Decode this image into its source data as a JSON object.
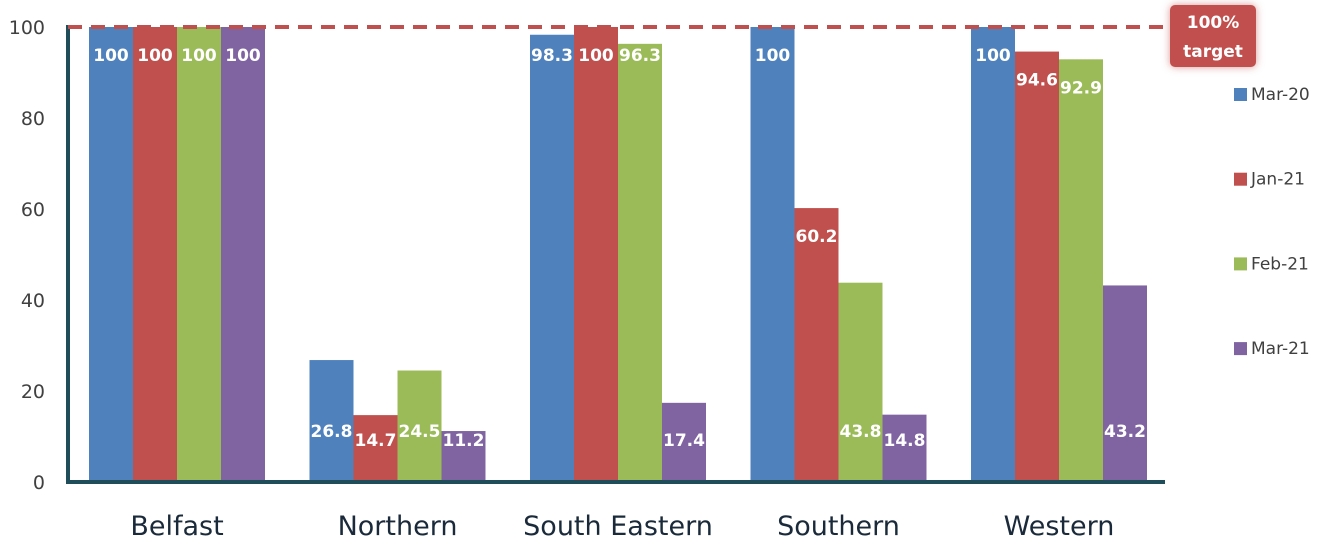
{
  "chart_data": {
    "type": "bar",
    "categories": [
      "Belfast",
      "Northern",
      "South Eastern",
      "Southern",
      "Western"
    ],
    "series": [
      {
        "name": "Mar-20",
        "color": "#4f81bd",
        "values": [
          100,
          26.8,
          98.3,
          100,
          100
        ]
      },
      {
        "name": "Jan-21",
        "color": "#c0504d",
        "values": [
          100,
          14.7,
          100,
          60.2,
          94.6
        ]
      },
      {
        "name": "Feb-21",
        "color": "#9bbb59",
        "values": [
          100,
          24.5,
          96.3,
          43.8,
          92.9
        ]
      },
      {
        "name": "Mar-21",
        "color": "#8064a2",
        "values": [
          100,
          11.2,
          17.4,
          14.8,
          43.2
        ]
      }
    ],
    "data_labels": [
      [
        "100",
        "26.8",
        "98.3",
        "100",
        "100"
      ],
      [
        "100",
        "14.7",
        "100",
        "60.2",
        "94.6"
      ],
      [
        "100",
        "24.5",
        "96.3",
        "43.8",
        "92.9"
      ],
      [
        "100",
        "11.2",
        "17.4",
        "14.8",
        "43.2"
      ]
    ],
    "yticks": [
      0,
      20,
      40,
      60,
      80,
      100
    ],
    "ylim": [
      0,
      100
    ],
    "grid": false,
    "legend_position": "right",
    "target_line": {
      "value": 100,
      "label_line1": "100%",
      "label_line2": "target",
      "color": "#c0504d",
      "style": "dashed"
    },
    "axis_color": "#1f4e5a"
  }
}
